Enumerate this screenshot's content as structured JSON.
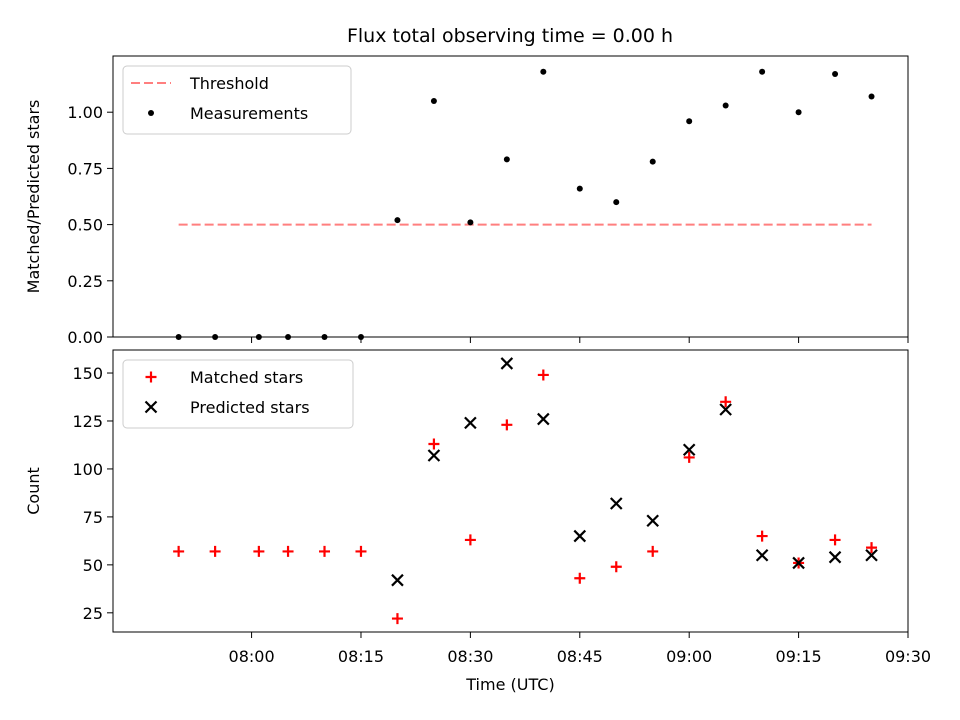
{
  "chart_data": [
    {
      "type": "scatter",
      "title": "Flux total observing time = 0.00 h",
      "ylabel": "Matched/Predicted stars",
      "xlabel": "",
      "ylim": [
        0,
        1.25
      ],
      "yticks": [
        "0.00",
        "0.25",
        "0.50",
        "0.75",
        "1.00"
      ],
      "x": [
        "07:50",
        "07:55",
        "08:01",
        "08:05",
        "08:10",
        "08:15",
        "08:20",
        "08:25",
        "08:30",
        "08:35",
        "08:40",
        "08:45",
        "08:50",
        "08:55",
        "09:00",
        "09:05",
        "09:10",
        "09:15",
        "09:20",
        "09:25"
      ],
      "series": [
        {
          "name": "Threshold",
          "kind": "dashed-line",
          "color": "#ff7f7f",
          "x_range": [
            "07:50",
            "09:25"
          ],
          "value": 0.5
        },
        {
          "name": "Measurements",
          "kind": "dots",
          "color": "#000000",
          "values": [
            0.0,
            0.0,
            0.0,
            0.0,
            0.0,
            0.0,
            0.52,
            1.05,
            0.51,
            0.79,
            1.18,
            0.66,
            0.6,
            0.78,
            0.96,
            1.03,
            1.18,
            1.0,
            1.17,
            1.07
          ]
        }
      ],
      "legend": "top-left"
    },
    {
      "type": "scatter",
      "title": "",
      "ylabel": "Count",
      "xlabel": "Time (UTC)",
      "ylim": [
        15,
        162
      ],
      "yticks": [
        "25",
        "50",
        "75",
        "100",
        "125",
        "150"
      ],
      "xticks": [
        "08:00",
        "08:15",
        "08:30",
        "08:45",
        "09:00",
        "09:15",
        "09:30"
      ],
      "x": [
        "07:50",
        "07:55",
        "08:01",
        "08:05",
        "08:10",
        "08:15",
        "08:20",
        "08:25",
        "08:30",
        "08:35",
        "08:40",
        "08:45",
        "08:50",
        "08:55",
        "09:00",
        "09:05",
        "09:10",
        "09:15",
        "09:20",
        "09:25"
      ],
      "series": [
        {
          "name": "Matched stars",
          "marker": "plus",
          "color": "#ff0000",
          "values": [
            57,
            57,
            57,
            57,
            57,
            57,
            22,
            113,
            63,
            123,
            149,
            43,
            49,
            57,
            106,
            135,
            65,
            51,
            63,
            59
          ]
        },
        {
          "name": "Predicted stars",
          "marker": "x",
          "color": "#000000",
          "x": [
            "08:20",
            "08:25",
            "08:30",
            "08:35",
            "08:40",
            "08:45",
            "08:50",
            "08:55",
            "09:00",
            "09:05",
            "09:10",
            "09:15",
            "09:20",
            "09:25"
          ],
          "values": [
            42,
            107,
            124,
            155,
            126,
            65,
            82,
            73,
            110,
            131,
            55,
            51,
            54,
            55
          ]
        }
      ],
      "legend": "top-left"
    }
  ]
}
